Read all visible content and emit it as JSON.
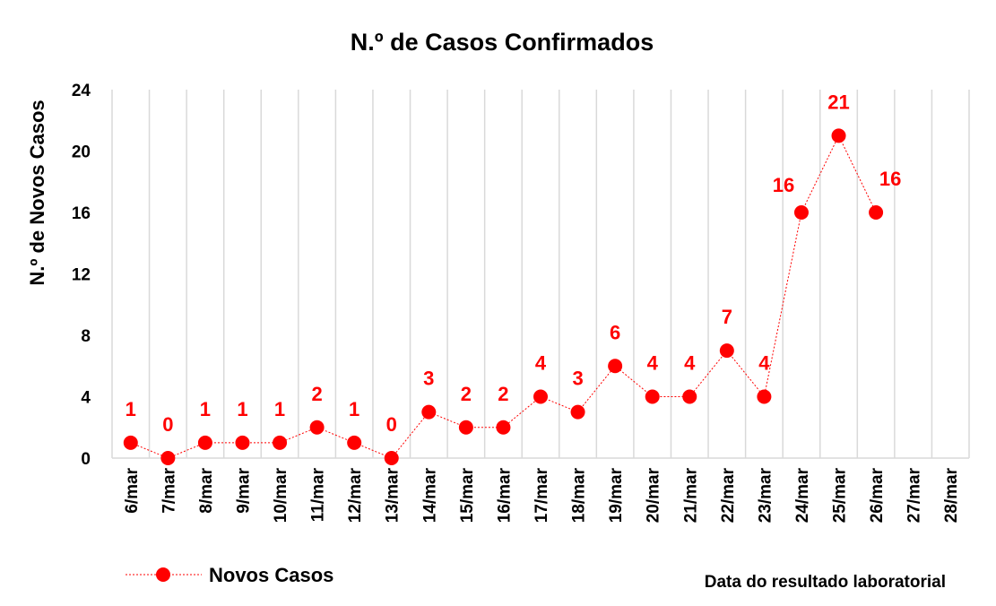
{
  "chart_data": {
    "type": "line",
    "title": "N.º de Casos Confirmados",
    "ylabel": "N.º de Novos Casos",
    "xlabel": "Data do resultado laboratorial",
    "categories": [
      "6/mar",
      "7/mar",
      "8/mar",
      "9/mar",
      "10/mar",
      "11/mar",
      "12/mar",
      "13/mar",
      "14/mar",
      "15/mar",
      "16/mar",
      "17/mar",
      "18/mar",
      "19/mar",
      "20/mar",
      "21/mar",
      "22/mar",
      "23/mar",
      "24/mar",
      "25/mar",
      "26/mar",
      "27/mar",
      "28/mar"
    ],
    "yticks": [
      "0",
      "4",
      "8",
      "12",
      "16",
      "20",
      "24"
    ],
    "ylim": [
      0,
      24
    ],
    "grid": "vertical",
    "legend_position": "bottom-left",
    "series": [
      {
        "name": "Novos Casos",
        "color": "#ff0000",
        "values": [
          1,
          0,
          1,
          1,
          1,
          2,
          1,
          0,
          3,
          2,
          2,
          4,
          3,
          6,
          4,
          4,
          7,
          4,
          16,
          21,
          16,
          null,
          null
        ],
        "labels": [
          "1",
          "0",
          "1",
          "1",
          "1",
          "2",
          "1",
          "0",
          "3",
          "2",
          "2",
          "4",
          "3",
          "6",
          "4",
          "4",
          "7",
          "4",
          "16",
          "21",
          "16",
          "",
          ""
        ]
      }
    ]
  }
}
